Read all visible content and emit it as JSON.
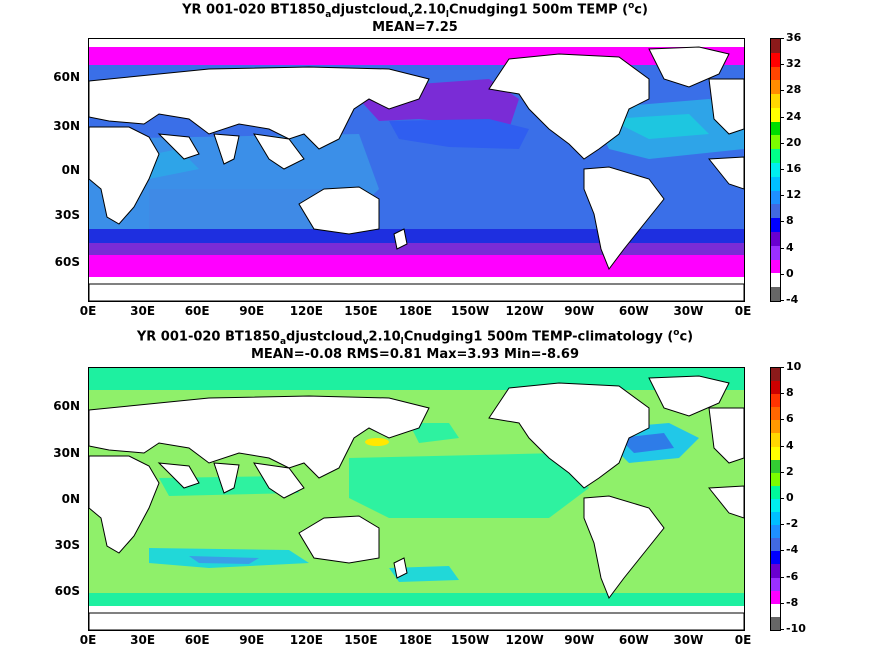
{
  "panel1": {
    "title_pre": "YR 001-020 BT1850",
    "title_sub1": "a",
    "title_mid1": "djustcloud",
    "title_sub2": "v",
    "title_mid2": "2.10",
    "title_sub3": "l",
    "title_mid3": "Cnudging1 500m TEMP (",
    "title_sup": "o",
    "title_end": "c)",
    "stats": "MEAN=7.25",
    "colorbar_labels": [
      "36",
      "32",
      "28",
      "24",
      "20",
      "16",
      "12",
      "8",
      "4",
      "0",
      "-4"
    ],
    "colorbar_colors": [
      "#8b1a1a",
      "#ff0000",
      "#ff4500",
      "#ff8c00",
      "#ffd700",
      "#ffff00",
      "#00dd00",
      "#7cfc00",
      "#00ff88",
      "#00eeee",
      "#00bfff",
      "#1e90ff",
      "#4169e1",
      "#0000ff",
      "#6a00d0",
      "#9b30ff",
      "#ff00ff",
      "#ffffff",
      "#666666"
    ]
  },
  "panel2": {
    "title_pre": "YR 001-020 BT1850",
    "title_sub1": "a",
    "title_mid1": "djustcloud",
    "title_sub2": "v",
    "title_mid2": "2.10",
    "title_sub3": "l",
    "title_mid3": "Cnudging1 500m TEMP-climatology (",
    "title_sup": "o",
    "title_end": "c)",
    "stats": "MEAN=-0.08   RMS=0.81   Max=3.93   Min=-8.69",
    "colorbar_labels": [
      "10",
      "8",
      "6",
      "4",
      "2",
      "0",
      "-2",
      "-4",
      "-6",
      "-8",
      "-10"
    ],
    "colorbar_colors": [
      "#8b1a1a",
      "#cc0000",
      "#ff3300",
      "#ff6600",
      "#ff9900",
      "#ffd700",
      "#ffff00",
      "#33cc33",
      "#7cfc00",
      "#00fa9a",
      "#00eeee",
      "#00bfff",
      "#1e90ff",
      "#4169e1",
      "#0000ff",
      "#6a00d0",
      "#9b30ff",
      "#ff00ff",
      "#ffffff",
      "#666666"
    ]
  },
  "axes": {
    "y_labels": [
      "60N",
      "30N",
      "0N",
      "30S",
      "60S"
    ],
    "x_labels": [
      "0E",
      "30E",
      "60E",
      "90E",
      "120E",
      "150E",
      "180E",
      "150W",
      "120W",
      "90W",
      "60W",
      "30W",
      "0E"
    ]
  },
  "colors": {
    "land": "#ffffff",
    "coast": "#000000"
  }
}
